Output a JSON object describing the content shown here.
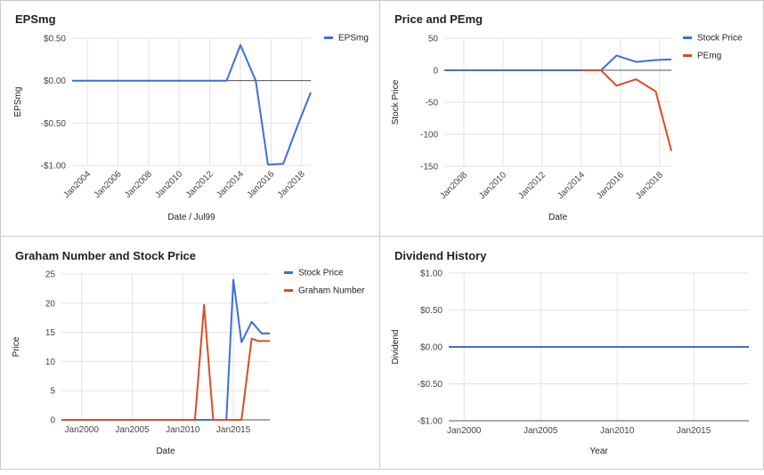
{
  "chart_data": [
    {
      "type": "line",
      "title": "EPSmg",
      "xlabel": "Date / Jul99",
      "ylabel": "EPSmg",
      "ytick_labels": [
        "$0.50",
        "$0.00",
        "-$0.50",
        "-$1.00"
      ],
      "ytick_values": [
        0.5,
        0,
        -0.5,
        -1.0
      ],
      "ylim": [
        -1.0,
        0.5
      ],
      "xtick_labels": [
        "Jan2004",
        "Jan2006",
        "Jan2008",
        "Jan2010",
        "Jan2012",
        "Jan2014",
        "Jan2016",
        "Jan2018"
      ],
      "xtick_values": [
        2004,
        2006,
        2008,
        2010,
        2012,
        2014,
        2016,
        2018
      ],
      "xlim": [
        2003.0,
        2018.6
      ],
      "zero_line": 0,
      "legend_position": "top-right",
      "series": [
        {
          "name": "EPSmg",
          "color": "#3c6fd9",
          "x": [
            2003.0,
            2013.1,
            2014.0,
            2015.0,
            2015.8,
            2016.8,
            2017.8,
            2018.6
          ],
          "y": [
            0,
            0,
            0.42,
            0,
            -0.99,
            -0.98,
            -0.5,
            -0.14
          ]
        }
      ]
    },
    {
      "type": "line",
      "title": "Price and PEmg",
      "xlabel": "Date",
      "ylabel": "Stock Price",
      "ytick_labels": [
        "50",
        "0",
        "-50",
        "-100",
        "-150"
      ],
      "ytick_values": [
        50,
        0,
        -50,
        -100,
        -150
      ],
      "ylim": [
        -150,
        50
      ],
      "xtick_labels": [
        "Jan2008",
        "Jan2010",
        "Jan2012",
        "Jan2014",
        "Jan2016",
        "Jan2018"
      ],
      "xtick_values": [
        2008,
        2010,
        2012,
        2014,
        2016,
        2018
      ],
      "xlim": [
        2007.0,
        2018.6
      ],
      "zero_line": 0,
      "legend_position": "top-right",
      "series": [
        {
          "name": "Stock Price",
          "color": "#3c6fd9",
          "x": [
            2007.0,
            2015.0,
            2015.8,
            2016.8,
            2017.8,
            2018.6
          ],
          "y": [
            0,
            0,
            23,
            13,
            16,
            17
          ]
        },
        {
          "name": "PEmg",
          "color": "#dd4b27",
          "x": [
            2014.0,
            2015.0,
            2015.8,
            2016.8,
            2017.8,
            2018.6
          ],
          "y": [
            0,
            0,
            -24,
            -14,
            -33,
            -126
          ]
        }
      ]
    },
    {
      "type": "line",
      "title": "Graham Number and Stock Price",
      "xlabel": "Date",
      "ylabel": "Price",
      "ytick_labels": [
        "25",
        "20",
        "15",
        "10",
        "5",
        "0"
      ],
      "ytick_values": [
        25,
        20,
        15,
        10,
        5,
        0
      ],
      "ylim": [
        0,
        25
      ],
      "xtick_labels": [
        "Jan2000",
        "Jan2005",
        "Jan2010",
        "Jan2015"
      ],
      "xtick_values": [
        2000,
        2005,
        2010,
        2015
      ],
      "xlim": [
        1998.0,
        2018.6
      ],
      "legend_position": "top-right",
      "series": [
        {
          "name": "Stock Price",
          "color": "#3c6fd9",
          "x": [
            1998.0,
            2013.5,
            2014.3,
            2015.0,
            2015.8,
            2016.8,
            2017.8,
            2018.6
          ],
          "y": [
            0,
            0,
            0,
            24,
            13.3,
            16.8,
            14.8,
            14.8
          ]
        },
        {
          "name": "Graham Number",
          "color": "#dd4b27",
          "x": [
            1998.0,
            2011.2,
            2012.1,
            2013.0,
            2015.8,
            2016.8,
            2017.5,
            2018.6
          ],
          "y": [
            0,
            0,
            19.7,
            0,
            0,
            13.9,
            13.5,
            13.5
          ]
        }
      ]
    },
    {
      "type": "line",
      "title": "Dividend History",
      "xlabel": "Year",
      "ylabel": "Dividend",
      "ytick_labels": [
        "$1.00",
        "$0.50",
        "$0.00",
        "-$0.50",
        "-$1.00"
      ],
      "ytick_values": [
        1.0,
        0.5,
        0,
        -0.5,
        -1.0
      ],
      "ylim": [
        -1.0,
        1.0
      ],
      "xtick_labels": [
        "Jan2000",
        "Jan2005",
        "Jan2010",
        "Jan2015"
      ],
      "xtick_values": [
        2000,
        2005,
        2010,
        2015
      ],
      "xlim": [
        1999.0,
        2018.6
      ],
      "series": [
        {
          "color": "#3c6fd9",
          "x": [
            1999.0,
            2018.6
          ],
          "y": [
            0,
            0
          ]
        }
      ]
    }
  ]
}
